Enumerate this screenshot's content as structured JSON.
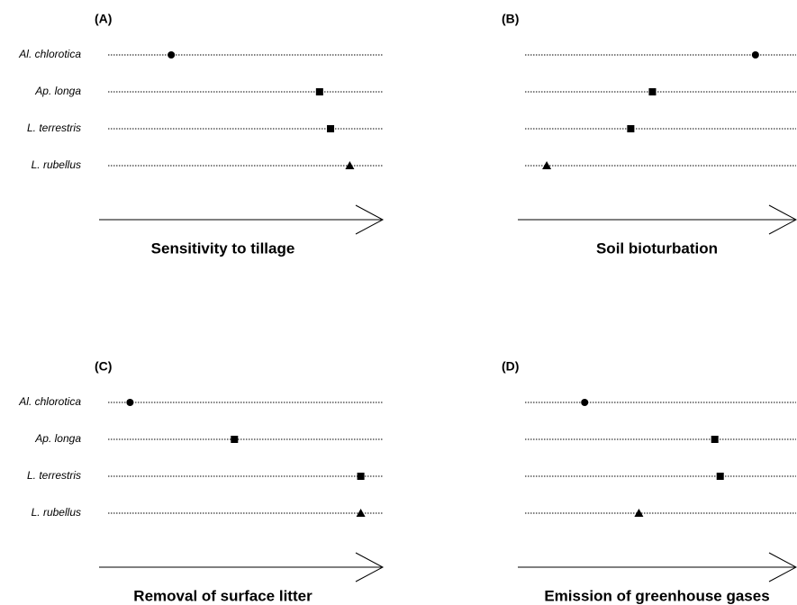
{
  "chart_data": [
    {
      "type": "dot",
      "title": "(A)",
      "xlabel": "Sensitivity to tillage",
      "categories": [
        "Al. chlorotica",
        "Ap. longa",
        "L. terrestris",
        "L. rubellus"
      ],
      "values": [
        0.23,
        0.77,
        0.81,
        0.88
      ],
      "markers": [
        "circle",
        "square",
        "square",
        "triangle"
      ],
      "xlim": [
        0,
        1
      ],
      "color": "#000000"
    },
    {
      "type": "dot",
      "title": "(B)",
      "xlabel": "Soil bioturbation",
      "values": [
        0.85,
        0.47,
        0.39,
        0.08
      ],
      "markers": [
        "circle",
        "square",
        "square",
        "triangle"
      ],
      "xlim": [
        0,
        1
      ],
      "color": "#000000"
    },
    {
      "type": "dot",
      "title": "(C)",
      "xlabel": "Removal of surface litter",
      "categories": [
        "Al. chlorotica",
        "Ap. longa",
        "L. terrestris",
        "L. rubellus"
      ],
      "values": [
        0.08,
        0.46,
        0.92,
        0.92
      ],
      "markers": [
        "circle",
        "square",
        "square",
        "triangle"
      ],
      "xlim": [
        0,
        1
      ],
      "color": "#000000"
    },
    {
      "type": "dot",
      "title": "(D)",
      "xlabel": "Emission of greenhouse gases",
      "values": [
        0.22,
        0.7,
        0.72,
        0.42
      ],
      "markers": [
        "circle",
        "square",
        "square",
        "triangle"
      ],
      "xlim": [
        0,
        1
      ],
      "color": "#000000"
    }
  ]
}
